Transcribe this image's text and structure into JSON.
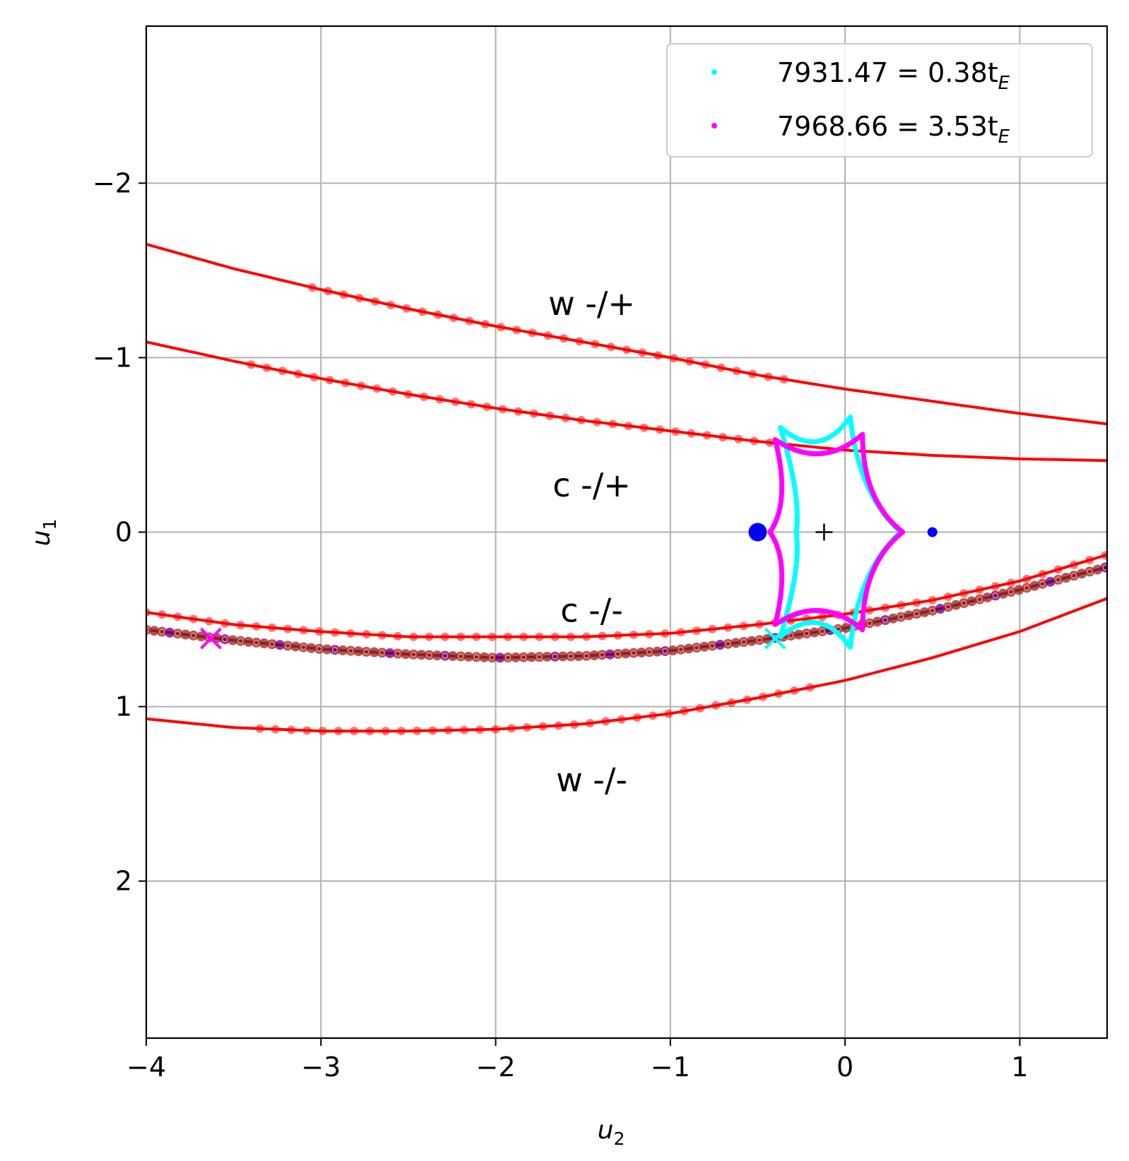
{
  "chart_data": {
    "type": "scatter",
    "title": "",
    "xlabel_main": "u",
    "xlabel_sub": "2",
    "ylabel_main": "u",
    "ylabel_sub": "1",
    "xlim": [
      -4,
      1.5
    ],
    "ylim": [
      -2.9,
      2.9
    ],
    "y_inverted": true,
    "grid": true,
    "legend_position": "top-right",
    "x_ticks": [
      -4,
      -3,
      -2,
      -1,
      0,
      1
    ],
    "x_tick_labels": [
      "−4",
      "−3",
      "−2",
      "−1",
      "0",
      "1"
    ],
    "y_ticks": [
      -2,
      -1,
      0,
      1,
      2
    ],
    "y_tick_labels": [
      "−2",
      "−1",
      "0",
      "1",
      "2"
    ],
    "legend": [
      {
        "main": "7931.47 = 0.38t",
        "sub": "E",
        "color": "#00ffff"
      },
      {
        "main": "7968.66 = 3.53t",
        "sub": "E",
        "color": "#ff00ff"
      }
    ],
    "region_labels": [
      {
        "text": "w -/+",
        "x": -1.45,
        "y": -1.31
      },
      {
        "text": "c -/+",
        "x": -1.45,
        "y": -0.27
      },
      {
        "text": "c -/-",
        "x": -1.45,
        "y": 0.45
      },
      {
        "text": "w -/-",
        "x": -1.45,
        "y": 1.42
      }
    ],
    "curves": [
      {
        "name": "w -/+",
        "color": "#ff0000",
        "x": [
          -4,
          -3.5,
          -3,
          -2.5,
          -2,
          -1.5,
          -1,
          -0.5,
          0,
          0.5,
          1,
          1.5
        ],
        "y": [
          -1.65,
          -1.51,
          -1.39,
          -1.28,
          -1.18,
          -1.09,
          -1.0,
          -0.9,
          -0.82,
          -0.75,
          -0.68,
          -0.62
        ]
      },
      {
        "name": "c -/+",
        "color": "#ff0000",
        "x": [
          -4,
          -3.5,
          -3,
          -2.5,
          -2,
          -1.5,
          -1,
          -0.5,
          0,
          0.5,
          1,
          1.5
        ],
        "y": [
          -1.09,
          -0.98,
          -0.88,
          -0.79,
          -0.71,
          -0.64,
          -0.58,
          -0.52,
          -0.47,
          -0.44,
          -0.42,
          -0.41
        ]
      },
      {
        "name": "c -/-",
        "color": "#ff0000",
        "x": [
          -4,
          -3.5,
          -3,
          -2.5,
          -2,
          -1.5,
          -1,
          -0.5,
          0,
          0.5,
          1,
          1.5
        ],
        "y": [
          0.46,
          0.53,
          0.57,
          0.6,
          0.6,
          0.6,
          0.58,
          0.53,
          0.47,
          0.39,
          0.28,
          0.13
        ]
      },
      {
        "name": "w -/-",
        "color": "#ff0000",
        "x": [
          -4,
          -3.5,
          -3,
          -2.5,
          -2,
          -1.5,
          -1,
          -0.5,
          0,
          0.5,
          1,
          1.5
        ],
        "y": [
          1.07,
          1.12,
          1.14,
          1.14,
          1.13,
          1.1,
          1.04,
          0.95,
          0.85,
          0.72,
          0.57,
          0.38
        ]
      },
      {
        "name": "trajectory",
        "color": "#000000",
        "x": [
          -4,
          -3.5,
          -3,
          -2.5,
          -2,
          -1.5,
          -1,
          -0.5,
          0,
          0.5,
          1,
          1.5
        ],
        "y": [
          0.56,
          0.62,
          0.67,
          0.7,
          0.72,
          0.71,
          0.68,
          0.62,
          0.55,
          0.45,
          0.33,
          0.2
        ]
      }
    ],
    "critical_points": [
      {
        "x": -0.5,
        "y": 0,
        "size": "large",
        "color": "#0000ff"
      },
      {
        "x": 0.5,
        "y": 0,
        "size": "small",
        "color": "#0000ff"
      }
    ],
    "center_marker": {
      "x": -0.12,
      "y": 0
    },
    "caustic_cyan": [
      [
        -0.37,
        -0.6
      ],
      [
        0.03,
        -0.66
      ],
      [
        0.32,
        0
      ],
      [
        0.03,
        0.66
      ],
      [
        -0.37,
        0.6
      ],
      [
        -0.28,
        0
      ]
    ],
    "caustic_magenta": [
      [
        -0.4,
        -0.53
      ],
      [
        0.1,
        -0.56
      ],
      [
        0.33,
        0
      ],
      [
        0.1,
        0.56
      ],
      [
        -0.4,
        0.53
      ],
      [
        -0.43,
        0
      ]
    ],
    "trajectory_markers": [
      {
        "x": -3.63,
        "y": 0.61,
        "color": "#ff00ff"
      },
      {
        "x": -0.4,
        "y": 0.61,
        "color": "#00ffff"
      }
    ],
    "point_ranges": {
      "w_upper": [
        -3.05,
        -0.28
      ],
      "c_upper": [
        -3.4,
        -0.42
      ],
      "c_lower": [
        -4,
        1.5
      ],
      "w_lower": [
        -3.35,
        -0.15
      ],
      "trajectory": [
        -4,
        1.5
      ]
    }
  }
}
